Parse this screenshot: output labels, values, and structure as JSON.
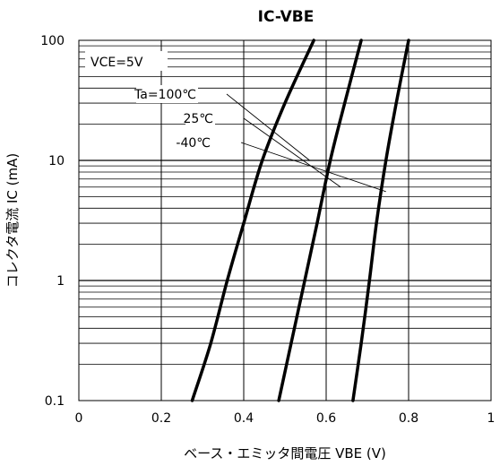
{
  "chart_data": {
    "type": "line",
    "title": "IC-VBE",
    "xlabel": "ベース・エミッタ間電圧 VBE (V)",
    "ylabel": "コレクタ電流 IC (mA)",
    "x_scale": "linear",
    "y_scale": "log",
    "xlim": [
      0,
      1
    ],
    "ylim": [
      0.1,
      100
    ],
    "x_ticks": [
      "0",
      "0.2",
      "0.4",
      "0.6",
      "0.8",
      "1"
    ],
    "y_ticks": [
      "0.1",
      "1",
      "10",
      "100"
    ],
    "grid": true,
    "condition_label": "VCE=5V",
    "series": [
      {
        "name": "Ta=100℃",
        "points": [
          [
            0.275,
            0.1
          ],
          [
            0.32,
            0.3
          ],
          [
            0.36,
            1.0
          ],
          [
            0.4,
            3.0
          ],
          [
            0.445,
            10.0
          ],
          [
            0.5,
            30.0
          ],
          [
            0.57,
            100.0
          ]
        ]
      },
      {
        "name": "25℃",
        "points": [
          [
            0.485,
            0.1
          ],
          [
            0.515,
            0.3
          ],
          [
            0.548,
            1.0
          ],
          [
            0.578,
            3.0
          ],
          [
            0.61,
            10.0
          ],
          [
            0.645,
            30.0
          ],
          [
            0.685,
            100.0
          ]
        ]
      },
      {
        "name": "-40℃",
        "points": [
          [
            0.665,
            0.1
          ],
          [
            0.685,
            0.3
          ],
          [
            0.705,
            1.0
          ],
          [
            0.722,
            3.0
          ],
          [
            0.745,
            10.0
          ],
          [
            0.77,
            30.0
          ],
          [
            0.8,
            100.0
          ]
        ]
      }
    ],
    "annotations": [
      {
        "text": "Ta=100℃",
        "points_to": [
          0.56,
          10
        ]
      },
      {
        "text": "25℃",
        "points_to": [
          0.635,
          6
        ]
      },
      {
        "text": "-40℃",
        "points_to": [
          0.745,
          5.5
        ]
      }
    ]
  }
}
